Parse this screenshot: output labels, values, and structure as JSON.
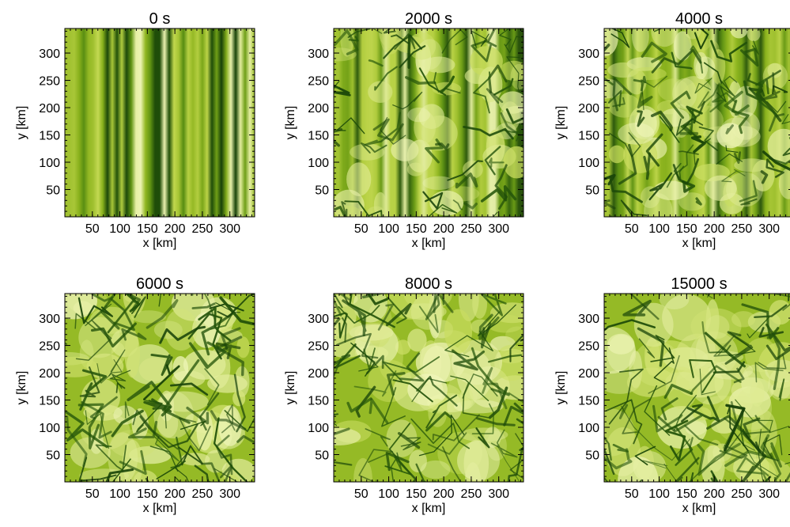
{
  "figure": {
    "background": "#ffffff"
  },
  "chart_data": [
    {
      "type": "heatmap",
      "title": "0 s",
      "xlabel": "x [km]",
      "ylabel": "y [km]",
      "xlim": [
        0,
        345
      ],
      "ylim": [
        0,
        345
      ],
      "xticks": [
        50,
        100,
        150,
        200,
        250,
        300
      ],
      "yticks": [
        50,
        100,
        150,
        200,
        250,
        300
      ],
      "pattern": "vertical-stripes",
      "colormap": [
        "#123a08",
        "#3e7a0c",
        "#8ab21c",
        "#c2d84e",
        "#f2f7c0"
      ],
      "grid": false
    },
    {
      "type": "heatmap",
      "title": "2000 s",
      "xlabel": "x [km]",
      "ylabel": "y [km]",
      "xlim": [
        0,
        345
      ],
      "ylim": [
        0,
        345
      ],
      "xticks": [
        50,
        100,
        150,
        200,
        250,
        300
      ],
      "yticks": [
        50,
        100,
        150,
        200,
        250,
        300
      ],
      "pattern": "stripes-with-cells",
      "colormap": [
        "#123a08",
        "#3e7a0c",
        "#8ab21c",
        "#c2d84e",
        "#f2f7c0"
      ],
      "grid": false
    },
    {
      "type": "heatmap",
      "title": "4000 s",
      "xlabel": "x [km]",
      "ylabel": "y [km]",
      "xlim": [
        0,
        345
      ],
      "ylim": [
        0,
        345
      ],
      "xticks": [
        50,
        100,
        150,
        200,
        250,
        300
      ],
      "yticks": [
        50,
        100,
        150,
        200,
        250,
        300
      ],
      "pattern": "stripes-with-cells",
      "colormap": [
        "#123a08",
        "#3e7a0c",
        "#8ab21c",
        "#c2d84e",
        "#f2f7c0"
      ],
      "grid": false
    },
    {
      "type": "heatmap",
      "title": "6000 s",
      "xlabel": "x [km]",
      "ylabel": "y [km]",
      "xlim": [
        0,
        345
      ],
      "ylim": [
        0,
        345
      ],
      "xticks": [
        50,
        100,
        150,
        200,
        250,
        300
      ],
      "yticks": [
        50,
        100,
        150,
        200,
        250,
        300
      ],
      "pattern": "cellular",
      "colormap": [
        "#123a08",
        "#3e7a0c",
        "#8ab21c",
        "#c2d84e",
        "#f2f7c0"
      ],
      "grid": false
    },
    {
      "type": "heatmap",
      "title": "8000 s",
      "xlabel": "x [km]",
      "ylabel": "y [km]",
      "xlim": [
        0,
        345
      ],
      "ylim": [
        0,
        345
      ],
      "xticks": [
        50,
        100,
        150,
        200,
        250,
        300
      ],
      "yticks": [
        50,
        100,
        150,
        200,
        250,
        300
      ],
      "pattern": "cellular",
      "colormap": [
        "#123a08",
        "#3e7a0c",
        "#8ab21c",
        "#c2d84e",
        "#f2f7c0"
      ],
      "grid": false
    },
    {
      "type": "heatmap",
      "title": "15000 s",
      "xlabel": "x [km]",
      "ylabel": "y [km]",
      "xlim": [
        0,
        345
      ],
      "ylim": [
        0,
        345
      ],
      "xticks": [
        50,
        100,
        150,
        200,
        250,
        300
      ],
      "yticks": [
        50,
        100,
        150,
        200,
        250,
        300
      ],
      "pattern": "cellular",
      "colormap": [
        "#123a08",
        "#3e7a0c",
        "#8ab21c",
        "#c2d84e",
        "#f2f7c0"
      ],
      "grid": false
    }
  ]
}
